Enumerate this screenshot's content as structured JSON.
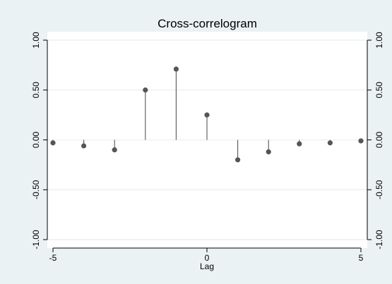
{
  "chart_data": {
    "type": "stem",
    "title": "Cross-correlogram",
    "xlabel": "Lag",
    "ylabel": "",
    "xlim": [
      -5,
      5
    ],
    "ylim": [
      -1,
      1
    ],
    "x_ticks": [
      -5,
      0,
      5
    ],
    "x_tick_labels": [
      "-5",
      "0",
      "5"
    ],
    "y_ticks": [
      -1,
      -0.5,
      0,
      0.5,
      1
    ],
    "y_tick_labels": [
      "-1.00",
      "-0.50",
      "0.00",
      "0.50",
      "1.00"
    ],
    "grid": "horizontal",
    "right_axis_mirrored": true,
    "x": [
      -5,
      -4,
      -3,
      -2,
      -1,
      0,
      1,
      2,
      3,
      4,
      5
    ],
    "values": [
      -0.03,
      -0.06,
      -0.1,
      0.5,
      0.71,
      0.25,
      -0.2,
      -0.12,
      -0.04,
      -0.03,
      -0.01
    ]
  },
  "colors": {
    "page_background": "#eaf2f3",
    "plot_background": "#ffffff",
    "gridline": "#eaf2f3",
    "marker": "#555555",
    "stem": "#555555",
    "axis": "#000000"
  }
}
